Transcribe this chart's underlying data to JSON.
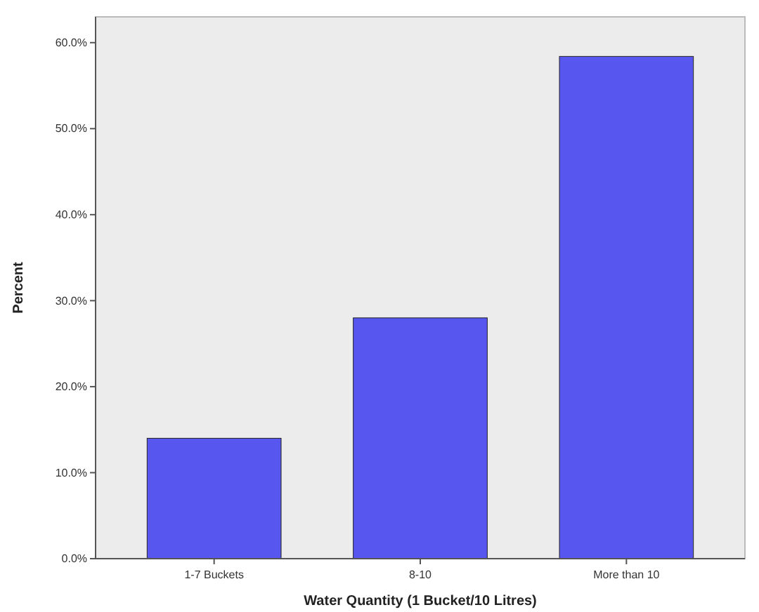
{
  "chart_data": {
    "type": "bar",
    "xlabel": "Water Quantity (1 Bucket/10 Litres)",
    "ylabel": "Percent",
    "categories": [
      "1-7 Buckets",
      "8-10",
      "More than 10"
    ],
    "values": [
      14,
      28,
      58.4
    ],
    "color": "#5757f0",
    "ylim": [
      0,
      63
    ],
    "yticks": [
      {
        "value": 0,
        "label": "0.0%"
      },
      {
        "value": 10,
        "label": "10.0%"
      },
      {
        "value": 20,
        "label": "20.0%"
      },
      {
        "value": 30,
        "label": "30.0%"
      },
      {
        "value": 40,
        "label": "40.0%"
      },
      {
        "value": 50,
        "label": "50.0%"
      },
      {
        "value": 60,
        "label": "60.0%"
      }
    ],
    "grid": false
  }
}
